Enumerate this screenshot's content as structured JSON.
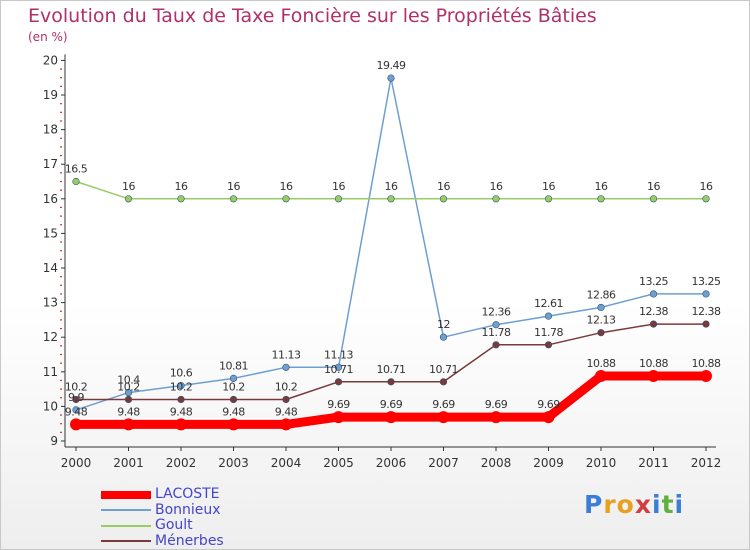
{
  "title": "Evolution du Taux de Taxe Foncière sur les Propriétés Bâties",
  "subtitle": "(en %)",
  "logo": {
    "text": "Proxiti",
    "letters": [
      "P",
      "r",
      "o",
      "x",
      "i",
      "t",
      "i"
    ],
    "colors": [
      "#3a7fd5",
      "#e8a020",
      "#e8a020",
      "#d04040",
      "#3a7fd5",
      "#60b040",
      "#3a7fd5"
    ]
  },
  "chart_data": {
    "type": "line",
    "title": "Evolution du Taux de Taxe Foncière sur les Propriétés Bâties",
    "ylabel": "(en %)",
    "xlabel": "",
    "ylim": [
      9,
      20
    ],
    "yticks": [
      "9",
      "10",
      "11",
      "12",
      "13",
      "14",
      "15",
      "16",
      "17",
      "18",
      "19",
      "20"
    ],
    "categories": [
      "2000",
      "2001",
      "2002",
      "2003",
      "2004",
      "2005",
      "2006",
      "2007",
      "2008",
      "2009",
      "2010",
      "2011",
      "2012"
    ],
    "grid": false,
    "legend_position": "bottom-left",
    "series": [
      {
        "name": "LACOSTE",
        "color": "#ff0000",
        "values": [
          9.48,
          9.48,
          9.48,
          9.48,
          9.48,
          9.69,
          9.69,
          9.69,
          9.69,
          9.69,
          10.88,
          10.88,
          10.88
        ],
        "labels": [
          "9.48",
          "9.48",
          "9.48",
          "9.48",
          "9.48",
          "9.69",
          "9.69",
          "9.69",
          "9.69",
          "9.69",
          "10.88",
          "10.88",
          "10.88"
        ]
      },
      {
        "name": "Bonnieux",
        "color": "#6f9fcf",
        "values": [
          9.9,
          10.4,
          10.6,
          10.81,
          11.13,
          11.13,
          19.49,
          12,
          12.36,
          12.61,
          12.86,
          13.25,
          13.25
        ],
        "labels": [
          "9.9",
          "10.4",
          "10.6",
          "10.81",
          "11.13",
          "11.13",
          "19.49",
          "12",
          "12.36",
          "12.61",
          "12.86",
          "13.25",
          "13.25"
        ]
      },
      {
        "name": "Goult",
        "color": "#99cc66",
        "values": [
          16.5,
          16,
          16,
          16,
          16,
          16,
          16,
          16,
          16,
          16,
          16,
          16,
          16
        ],
        "labels": [
          "16.5",
          "16",
          "16",
          "16",
          "16",
          "16",
          "16",
          "16",
          "16",
          "16",
          "16",
          "16",
          "16"
        ]
      },
      {
        "name": "Ménerbes",
        "color": "#7a3a3a",
        "values": [
          10.2,
          10.2,
          10.2,
          10.2,
          10.2,
          10.71,
          10.71,
          10.71,
          11.78,
          11.78,
          12.13,
          12.38,
          12.38
        ],
        "labels": [
          "10.2",
          "10.2",
          "10.2",
          "10.2",
          "10.2",
          "10.71",
          "10.71",
          "10.71",
          "11.78",
          "11.78",
          "12.13",
          "12.38",
          "12.38"
        ]
      }
    ]
  }
}
